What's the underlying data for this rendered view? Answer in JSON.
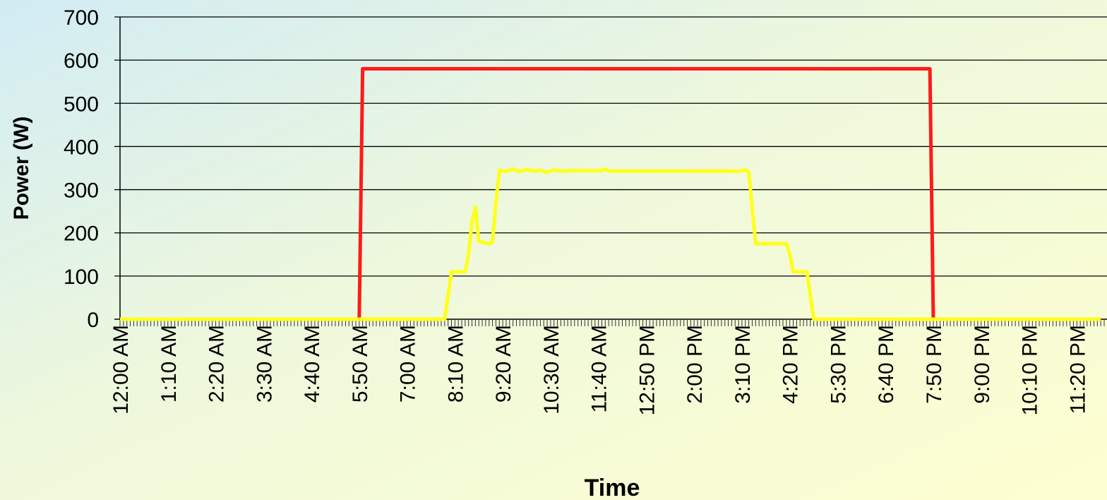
{
  "chart_data": {
    "type": "line",
    "xlabel": "Time",
    "ylabel": "Power (W)",
    "ylim": [
      0,
      700
    ],
    "yticks": [
      0,
      100,
      200,
      300,
      400,
      500,
      600,
      700
    ],
    "xlim_minutes": [
      0,
      1440
    ],
    "xtick_labels": [
      "12:00 AM",
      "1:10 AM",
      "2:20 AM",
      "3:30 AM",
      "4:40 AM",
      "5:50 AM",
      "7:00 AM",
      "8:10 AM",
      "9:20 AM",
      "10:30 AM",
      "11:40 AM",
      "12:50 PM",
      "2:00 PM",
      "3:10 PM",
      "4:20 PM",
      "5:30 PM",
      "6:40 PM",
      "7:50 PM",
      "9:00 PM",
      "10:10 PM",
      "11:20 PM"
    ],
    "grid": true,
    "series": [
      {
        "color": "#FF1A1A",
        "points": [
          [
            "12:00 AM",
            0
          ],
          [
            "5:50 AM",
            0
          ],
          [
            "5:55 AM",
            580
          ],
          [
            "7:45 PM",
            580
          ],
          [
            "7:50 PM",
            0
          ],
          [
            "11:55 PM",
            0
          ]
        ]
      },
      {
        "color": "#FFFF1A",
        "points": [
          [
            "12:00 AM",
            0
          ],
          [
            "7:55 AM",
            0
          ],
          [
            "8:05 AM",
            110
          ],
          [
            "8:25 AM",
            110
          ],
          [
            "8:30 AM",
            150
          ],
          [
            "8:35 AM",
            225
          ],
          [
            "8:40 AM",
            260
          ],
          [
            "8:45 AM",
            180
          ],
          [
            "9:00 AM",
            175
          ],
          [
            "9:05 AM",
            178
          ],
          [
            "9:10 AM",
            270
          ],
          [
            "9:15 AM",
            345
          ],
          [
            "9:25 AM",
            342
          ],
          [
            "9:35 AM",
            348
          ],
          [
            "9:45 AM",
            342
          ],
          [
            "9:55 AM",
            347
          ],
          [
            "10:05 AM",
            343
          ],
          [
            "10:15 AM",
            345
          ],
          [
            "10:25 AM",
            340
          ],
          [
            "10:35 AM",
            346
          ],
          [
            "10:45 AM",
            343
          ],
          [
            "11:00 AM",
            344
          ],
          [
            "11:45 AM",
            344
          ],
          [
            "11:50 AM",
            348
          ],
          [
            "11:55 AM",
            343
          ],
          [
            "3:10 PM",
            343
          ],
          [
            "3:15 PM",
            347
          ],
          [
            "3:20 PM",
            340
          ],
          [
            "3:30 PM",
            175
          ],
          [
            "4:15 PM",
            175
          ],
          [
            "4:20 PM",
            150
          ],
          [
            "4:25 PM",
            110
          ],
          [
            "4:45 PM",
            110
          ],
          [
            "4:55 PM",
            0
          ],
          [
            "11:55 PM",
            0
          ]
        ]
      }
    ]
  }
}
